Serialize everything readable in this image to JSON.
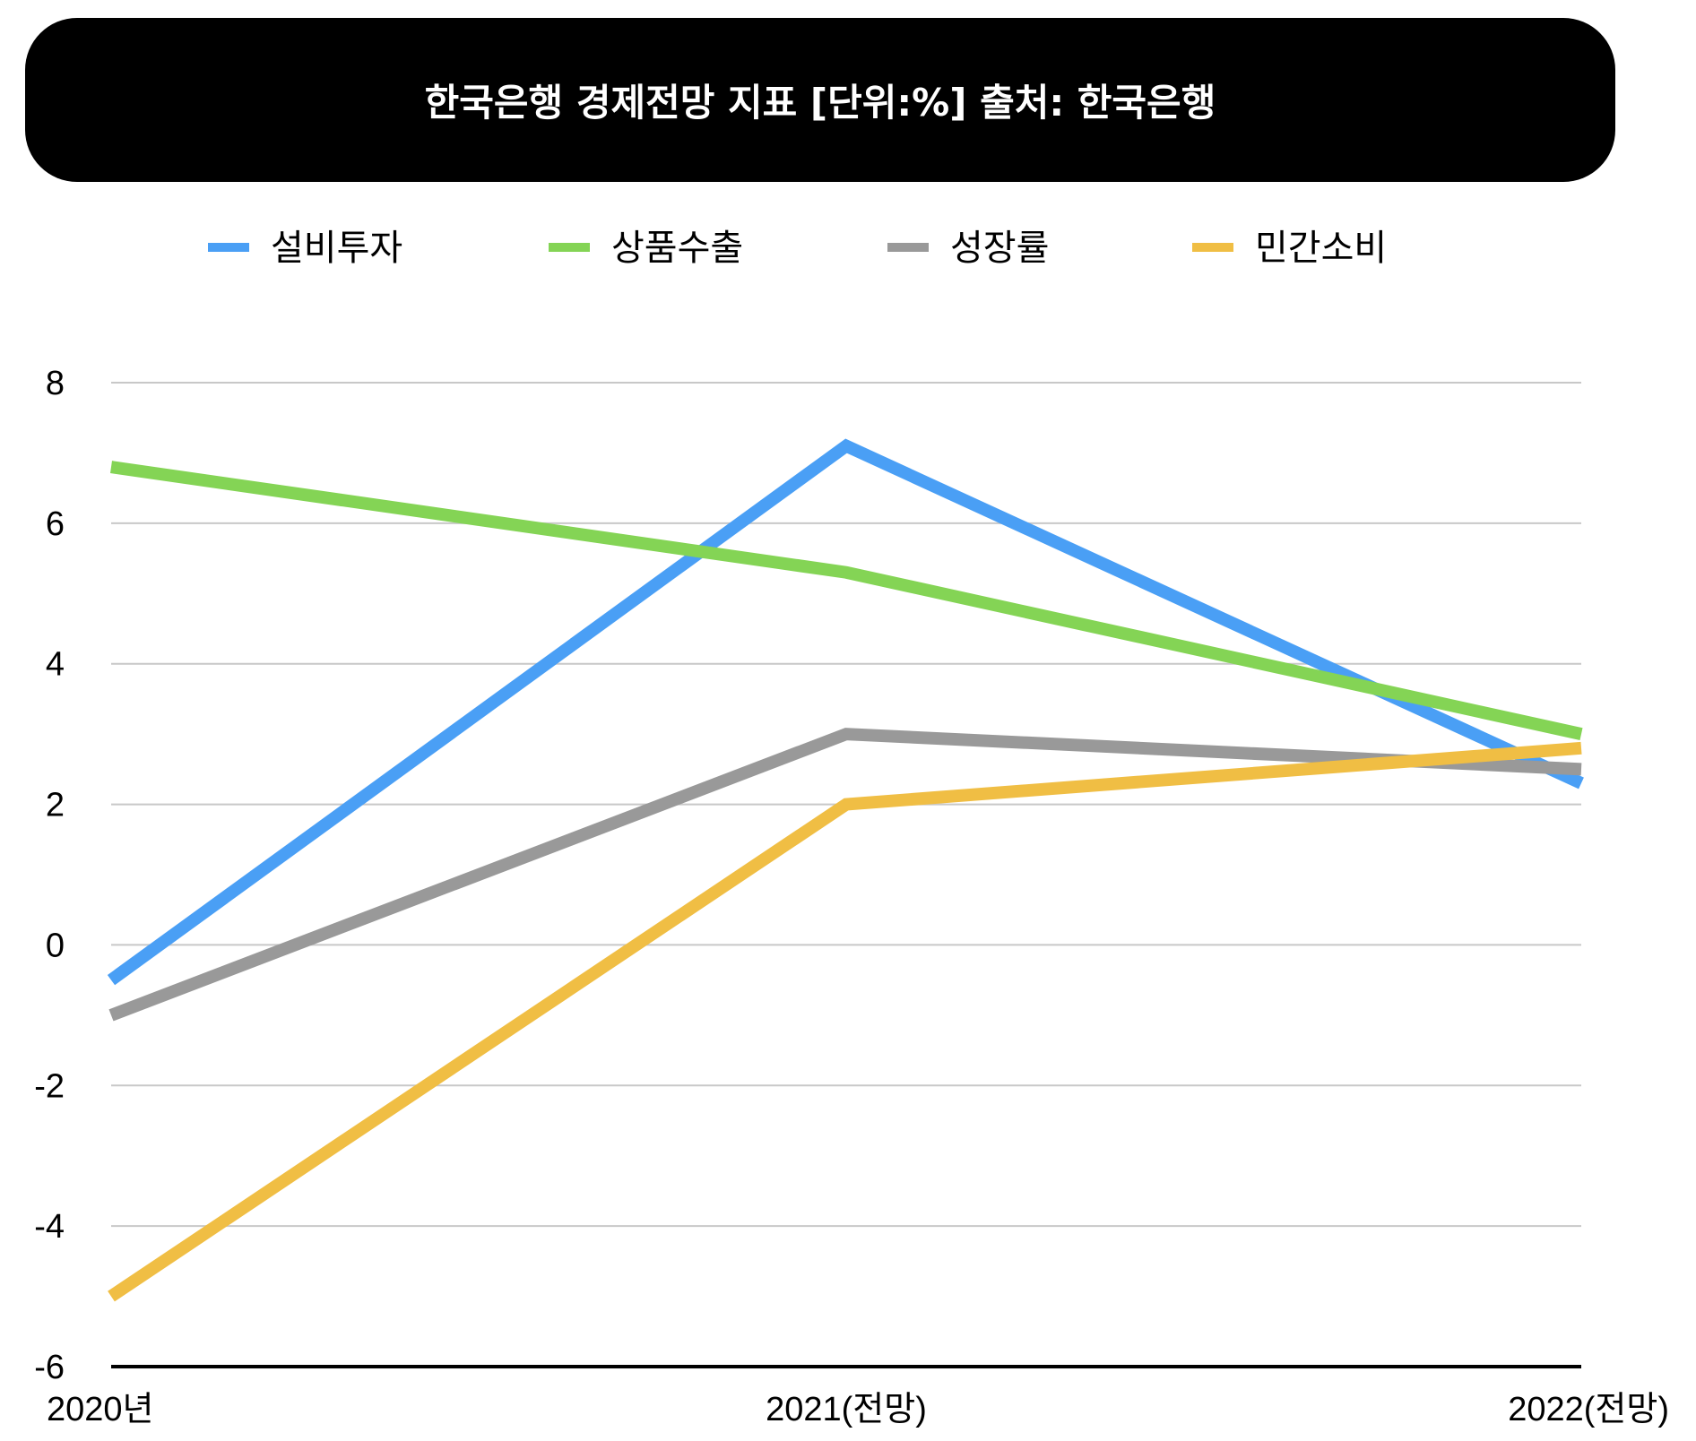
{
  "chart_data": {
    "type": "line",
    "title": "한국은행 경제전망 지표 [단위:%] 출처: 한국은행",
    "categories": [
      "2020년",
      "2021(전망)",
      "2022(전망)"
    ],
    "series": [
      {
        "name": "설비투자",
        "color": "#4A9FF5",
        "values": [
          -0.5,
          7.1,
          2.3
        ]
      },
      {
        "name": "상품수출",
        "color": "#84D455",
        "values": [
          6.8,
          5.3,
          3.0
        ]
      },
      {
        "name": "성장률",
        "color": "#999999",
        "values": [
          -1.0,
          3.0,
          2.5
        ]
      },
      {
        "name": "민간소비",
        "color": "#F0BE44",
        "values": [
          -5.0,
          2.0,
          2.8
        ]
      }
    ],
    "ylim": [
      -6,
      8
    ],
    "yticks": [
      "8",
      "6",
      "4",
      "2",
      "0",
      "-2",
      "-4",
      "-6"
    ],
    "grid": true,
    "legend": "top"
  }
}
